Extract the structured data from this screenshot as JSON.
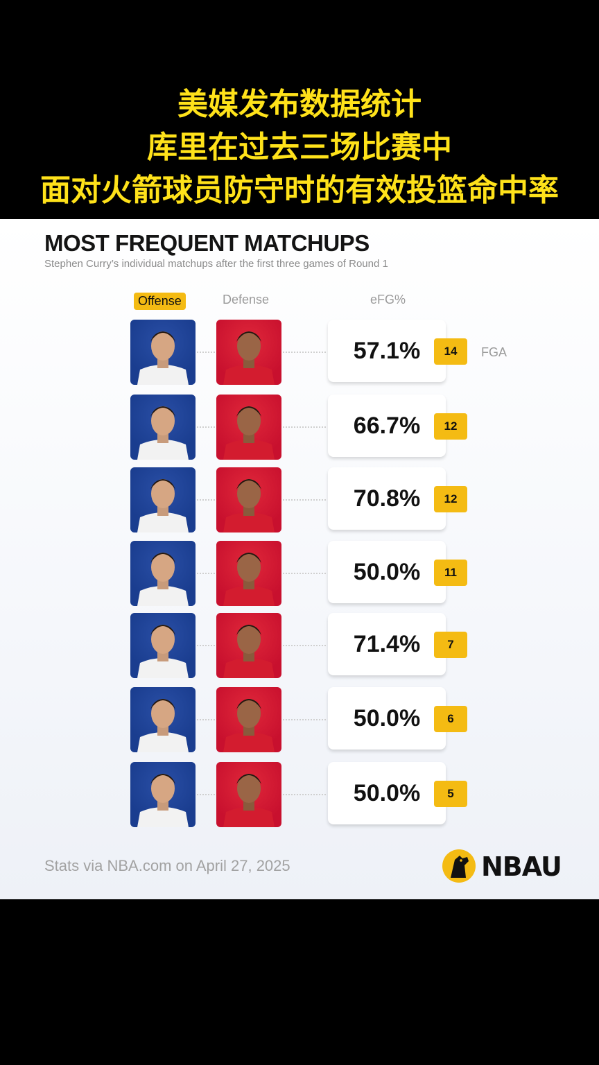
{
  "overlay": {
    "line1": "美媒发布数据统计",
    "line2": "库里在过去三场比赛中",
    "line3": "面对火箭球员防守时的有效投篮命中率"
  },
  "chart_data": {
    "type": "table",
    "title": "MOST FREQUENT MATCHUPS",
    "subtitle": "Stephen Curry’s individual matchups after the first three games of Round 1",
    "columns": {
      "offense": "Offense",
      "defense": "Defense",
      "efg": "eFG%",
      "fga": "FGA"
    },
    "rows": [
      {
        "efg": "57.1%",
        "fga": 14
      },
      {
        "efg": "66.7%",
        "fga": 12
      },
      {
        "efg": "70.8%",
        "fga": 12
      },
      {
        "efg": "50.0%",
        "fga": 11
      },
      {
        "efg": "71.4%",
        "fga": 7
      },
      {
        "efg": "50.0%",
        "fga": 6
      },
      {
        "efg": "50.0%",
        "fga": 5
      }
    ],
    "colors": {
      "accent": "#f4bb13",
      "offense_bg": "#1d428a",
      "defense_bg": "#ce1141"
    }
  },
  "footer": {
    "source": "Stats via NBA.com on April 27, 2025"
  },
  "brand": {
    "logo_text": "NBAU"
  }
}
